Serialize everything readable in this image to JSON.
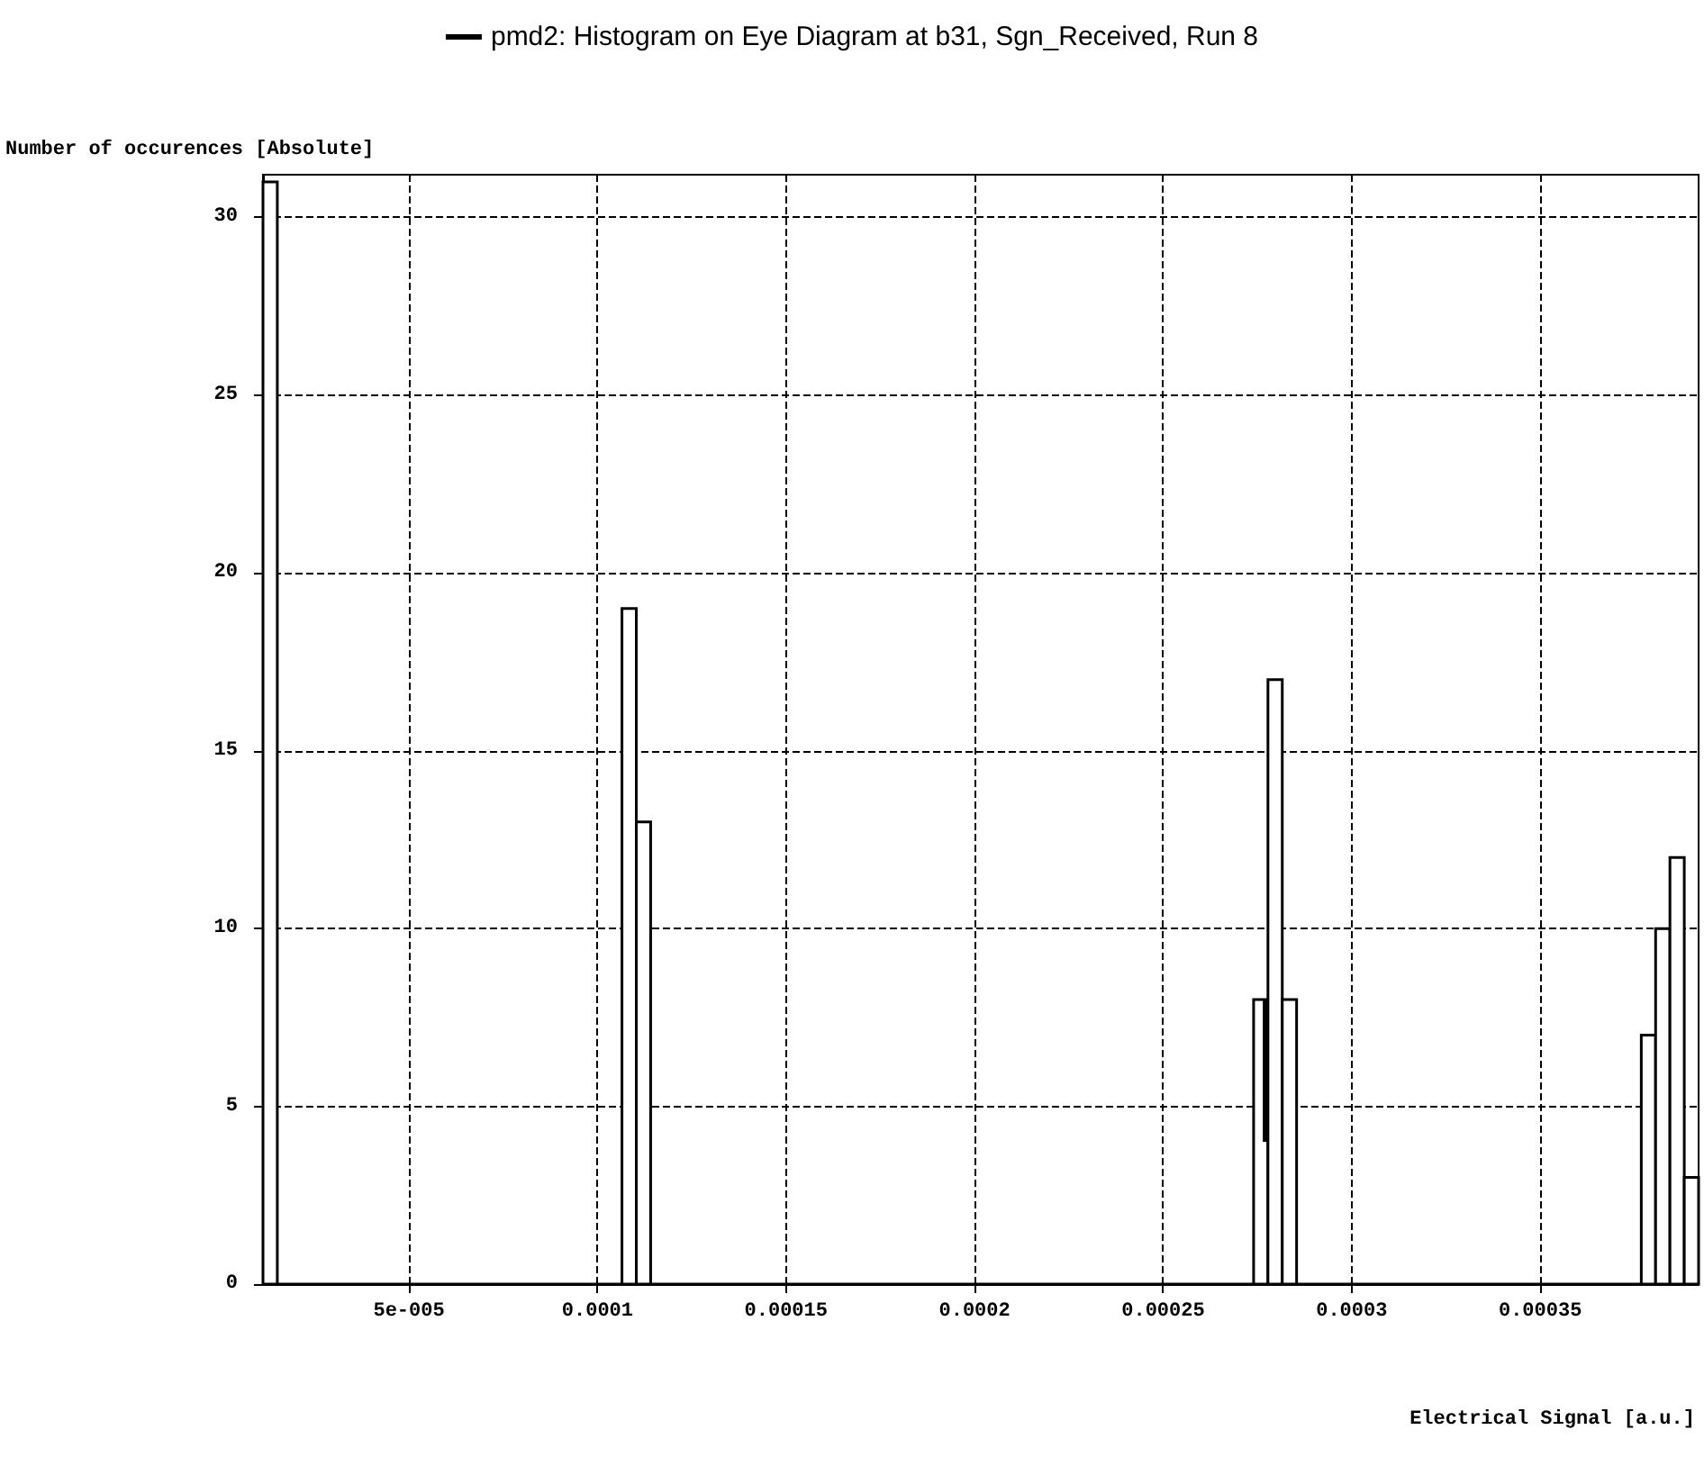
{
  "chart_data": {
    "type": "histogram",
    "xlabel": "Electrical Signal [a.u.]",
    "ylabel": "Number of occurences [Absolute]",
    "bins": [
      1.13e-05,
      1.51e-05,
      0.0001065,
      0.0001103,
      0.0001141,
      0.000274,
      0.0002778,
      0.0002816,
      0.0002854,
      0.0003768,
      0.0003806,
      0.0003844,
      0.0003882,
      0.000392
    ],
    "series": [
      {
        "name": "pmd2: Histogram on Eye Diagram at b31, Sgn_Received, Run 8",
        "color": "#000000",
        "values": [
          31,
          0,
          19,
          13,
          0,
          8,
          17,
          8,
          0,
          7,
          10,
          12,
          3
        ]
      },
      {
        "type": "line",
        "color": "#000000",
        "x": [
          0.00027715,
          0.00027715
        ],
        "values": [
          4,
          8
        ]
      }
    ],
    "xlim": [
      1.13e-05,
      0.000392
    ],
    "xticks": [
      {
        "value": 5e-05,
        "label": "5e-005"
      },
      0.0001,
      0.00015,
      0.0002,
      0.00025,
      0.0003,
      0.00035
    ],
    "ylim": [
      0,
      31.2
    ],
    "yticks": [
      0,
      5,
      10,
      15,
      20,
      25,
      30
    ],
    "grid": true,
    "legend": "top"
  }
}
